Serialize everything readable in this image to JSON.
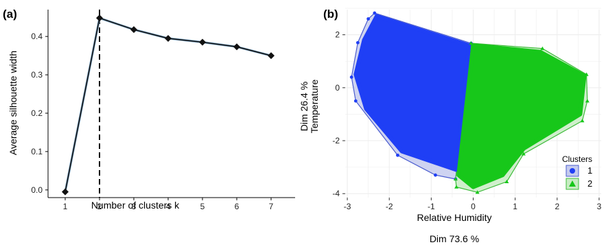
{
  "panels": {
    "a_label": "(a)",
    "b_label": "(b)"
  },
  "colors": {
    "cluster1": "#1f3ff5",
    "cluster1_hull": "#c5cbee",
    "cluster1_hull_edge": "#4a5ccf",
    "cluster2": "#17c71a",
    "cluster2_hull": "#c8ecc3",
    "cluster2_hull_edge": "#3dbb3a",
    "grid": "#ececec"
  },
  "chart_data": [
    {
      "type": "line",
      "xlabel": "Number of clusters k",
      "ylabel": "Average silhouette width",
      "x": [
        1,
        2,
        3,
        4,
        5,
        6,
        7
      ],
      "y": [
        -0.005,
        0.448,
        0.418,
        0.395,
        0.385,
        0.373,
        0.35
      ],
      "xlim": [
        0.5,
        7.7
      ],
      "ylim": [
        -0.02,
        0.47
      ],
      "xticks": [
        "1",
        "2",
        "3",
        "4",
        "5",
        "6",
        "7"
      ],
      "yticks": [
        "0.0",
        "0.1",
        "0.2",
        "0.3",
        "0.4"
      ],
      "optimal_k": 2,
      "marker": "diamond",
      "grid": false
    },
    {
      "type": "scatter",
      "xlabel_lines": [
        "Relative Humidity",
        "Dim 73.6 %"
      ],
      "ylabel_lines": [
        "Dim 26.4 %",
        "Temperature"
      ],
      "xlim": [
        -3.05,
        3.05
      ],
      "ylim": [
        -4.15,
        2.95
      ],
      "xticks": [
        "-3",
        "-2",
        "-1",
        "0",
        "1",
        "2",
        "3"
      ],
      "yticks": [
        "-4",
        "-2",
        "0",
        "2"
      ],
      "grid": true,
      "legend": {
        "title": "Clusters",
        "position": "right",
        "entries": [
          {
            "label": "1",
            "marker": "circle"
          },
          {
            "label": "2",
            "marker": "triangle"
          }
        ]
      },
      "series": [
        {
          "label": "1",
          "hull": [
            [
              -2.35,
              2.82
            ],
            [
              -0.05,
              1.68
            ],
            [
              -0.42,
              -3.45
            ],
            [
              -0.9,
              -3.3
            ],
            [
              -1.8,
              -2.55
            ],
            [
              -2.8,
              -0.5
            ],
            [
              -2.9,
              0.4
            ],
            [
              -2.75,
              1.7
            ],
            [
              -2.5,
              2.6
            ]
          ],
          "body": [
            [
              -2.3,
              2.7
            ],
            [
              -0.1,
              1.6
            ],
            [
              -0.4,
              -3.1
            ],
            [
              -1.7,
              -2.4
            ],
            [
              -2.55,
              -0.8
            ],
            [
              -2.8,
              0.5
            ],
            [
              -2.6,
              1.8
            ]
          ]
        },
        {
          "label": "2",
          "hull": [
            [
              -0.05,
              1.68
            ],
            [
              1.65,
              1.48
            ],
            [
              2.7,
              0.5
            ],
            [
              2.72,
              -0.5
            ],
            [
              2.6,
              -1.25
            ],
            [
              1.2,
              -2.5
            ],
            [
              0.8,
              -3.55
            ],
            [
              0.1,
              -3.95
            ],
            [
              -0.4,
              -3.75
            ],
            [
              -0.42,
              -3.45
            ]
          ],
          "body": [
            [
              0.0,
              1.6
            ],
            [
              1.6,
              1.35
            ],
            [
              2.65,
              0.45
            ],
            [
              2.55,
              -1.0
            ],
            [
              1.2,
              -2.3
            ],
            [
              0.7,
              -3.3
            ],
            [
              0.0,
              -3.75
            ],
            [
              -0.35,
              -3.3
            ]
          ]
        }
      ]
    }
  ]
}
